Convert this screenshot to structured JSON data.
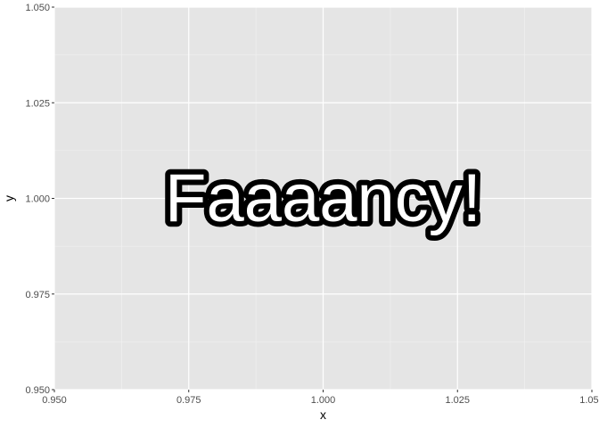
{
  "chart_data": {
    "type": "scatter",
    "title": "",
    "xlabel": "x",
    "ylabel": "y",
    "xlim": [
      0.95,
      1.05
    ],
    "ylim": [
      0.95,
      1.05
    ],
    "x_ticks": [
      0.95,
      0.975,
      1.0,
      1.025,
      1.05
    ],
    "x_tick_labels": [
      "0.950",
      "0.975",
      "1.000",
      "1.025",
      "1.050"
    ],
    "y_ticks": [
      0.95,
      0.975,
      1.0,
      1.025,
      1.05
    ],
    "y_tick_labels": [
      "0.950",
      "0.975",
      "1.000",
      "1.025",
      "1.050"
    ],
    "grid": true,
    "annotations": [
      {
        "text": "Faaaancy!",
        "x": 1.0,
        "y": 1.0
      }
    ],
    "colors": {
      "panel_background": "#e5e5e5",
      "grid_major": "#ffffff",
      "grid_minor": "#f2f2f2",
      "text_fill": "#ffffff",
      "text_outline": "#000000"
    }
  }
}
